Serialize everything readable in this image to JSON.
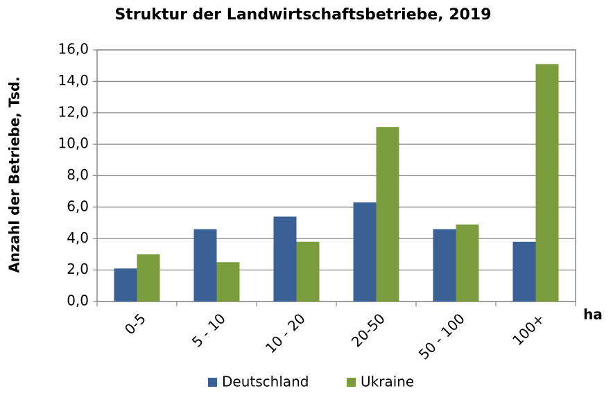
{
  "chart_data": {
    "type": "bar",
    "title": "Struktur der Landwirtschaftsbetriebe, 2019",
    "y_label": "Anzahl der Betriebe,  Tsd.",
    "x_label": "ha",
    "categories": [
      "0-5",
      "5 - 10",
      "10 - 20",
      "20-50",
      "50 - 100",
      "100+"
    ],
    "series": [
      {
        "name": "Deutschland",
        "color": "#3a6096",
        "values": [
          2.1,
          4.6,
          5.4,
          6.3,
          4.6,
          3.8
        ]
      },
      {
        "name": "Ukraine",
        "color": "#7b9c3c",
        "values": [
          3.0,
          2.5,
          3.8,
          11.1,
          4.9,
          15.1
        ]
      }
    ],
    "ylim": [
      0,
      16
    ],
    "yticks": [
      {
        "value": 0,
        "label": "0,0"
      },
      {
        "value": 2,
        "label": "2,0"
      },
      {
        "value": 4,
        "label": "4,0"
      },
      {
        "value": 6,
        "label": "6,0"
      },
      {
        "value": 8,
        "label": "8,0"
      },
      {
        "value": 10,
        "label": "10,0"
      },
      {
        "value": 12,
        "label": "12,0"
      },
      {
        "value": 14,
        "label": "14,0"
      },
      {
        "value": 16,
        "label": "16,0"
      }
    ],
    "grid": true,
    "legend": "bottom"
  }
}
